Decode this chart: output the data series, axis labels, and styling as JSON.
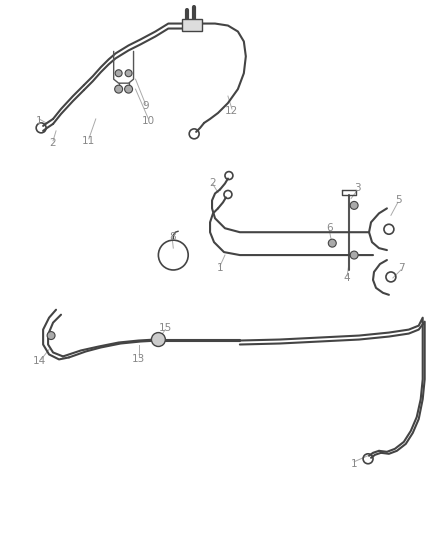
{
  "bg_color": "#ffffff",
  "line_color": "#444444",
  "label_color": "#888888",
  "figsize": [
    4.38,
    5.33
  ],
  "dpi": 100
}
